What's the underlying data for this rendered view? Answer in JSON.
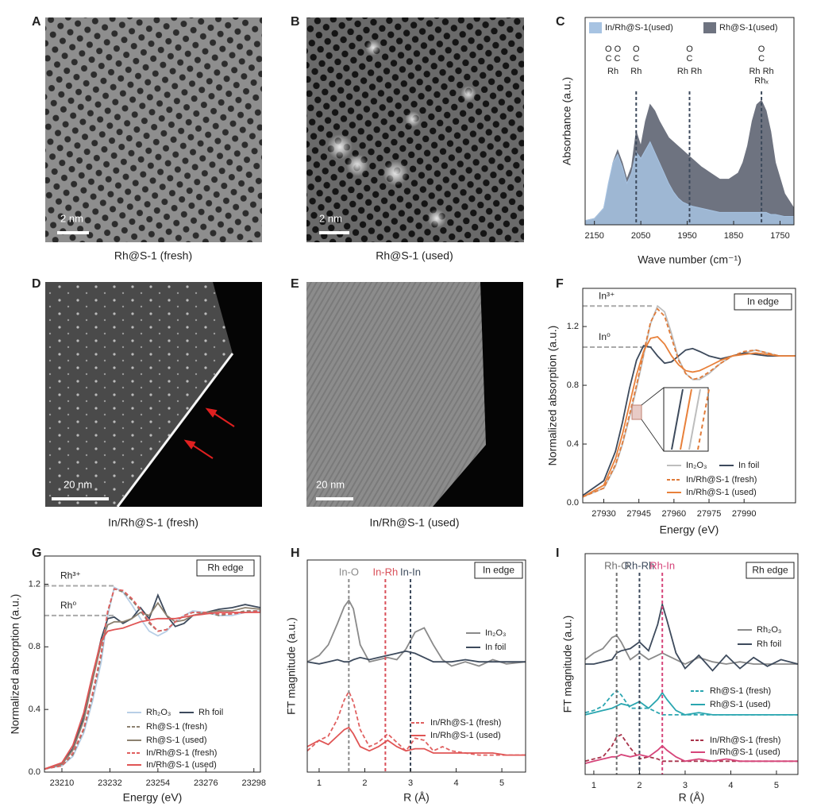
{
  "images": [
    {
      "label": "A",
      "caption": "Rh@S-1 (fresh)",
      "scale": "2 nm"
    },
    {
      "label": "B",
      "caption": "Rh@S-1 (used)",
      "scale": "2 nm"
    },
    {
      "label": "D",
      "caption": "In/Rh@S-1 (fresh)",
      "scale": "20 nm"
    },
    {
      "label": "E",
      "caption": "In/Rh@S-1 (used)",
      "scale": "20 nm"
    }
  ],
  "chart_data": [
    {
      "type": "area",
      "label": "C",
      "xlabel": "Wave number (cm⁻¹)",
      "ylabel": "Absorbance (a.u.)",
      "xlim": [
        2170,
        1720
      ],
      "xticks": [
        2150,
        2050,
        1950,
        1850,
        1750
      ],
      "ylim": [
        0,
        1
      ],
      "x": [
        2170,
        2150,
        2130,
        2120,
        2110,
        2100,
        2090,
        2080,
        2070,
        2060,
        2050,
        2040,
        2030,
        2020,
        2010,
        2000,
        1990,
        1980,
        1970,
        1960,
        1950,
        1940,
        1920,
        1900,
        1880,
        1860,
        1840,
        1830,
        1820,
        1810,
        1800,
        1790,
        1780,
        1770,
        1760,
        1740,
        1720
      ],
      "markers": [
        {
          "value": 2110,
          "lines": [
            "O O",
            "C C",
            "Rh"
          ],
          "line": false
        },
        {
          "value": 2060,
          "lines": [
            "O",
            "C",
            "Rh"
          ],
          "line": true
        },
        {
          "value": 1945,
          "lines": [
            "O",
            "C",
            "Rh Rh"
          ],
          "line": true
        },
        {
          "value": 1790,
          "lines": [
            "O",
            "C",
            "Rh Rh",
            "Rhₓ"
          ],
          "line": true
        }
      ],
      "series": [
        {
          "name": "Rh@S-1(used)",
          "color": "#6e7380",
          "values": [
            0.02,
            0.03,
            0.08,
            0.18,
            0.3,
            0.36,
            0.3,
            0.22,
            0.28,
            0.45,
            0.38,
            0.5,
            0.58,
            0.55,
            0.5,
            0.46,
            0.42,
            0.4,
            0.38,
            0.36,
            0.34,
            0.32,
            0.28,
            0.25,
            0.22,
            0.22,
            0.25,
            0.3,
            0.38,
            0.5,
            0.58,
            0.6,
            0.55,
            0.45,
            0.3,
            0.15,
            0.08
          ]
        },
        {
          "name": "In/Rh@S-1(used)",
          "color": "#a7c3e2",
          "values": [
            0.02,
            0.03,
            0.08,
            0.2,
            0.3,
            0.34,
            0.28,
            0.2,
            0.25,
            0.35,
            0.32,
            0.36,
            0.4,
            0.35,
            0.3,
            0.25,
            0.2,
            0.16,
            0.13,
            0.11,
            0.1,
            0.09,
            0.08,
            0.07,
            0.06,
            0.06,
            0.06,
            0.06,
            0.06,
            0.06,
            0.06,
            0.06,
            0.06,
            0.05,
            0.05,
            0.04,
            0.04
          ]
        }
      ]
    },
    {
      "type": "line",
      "label": "F",
      "tag": "In edge",
      "xlabel": "Energy (eV)",
      "ylabel": "Normalized absorption (a.u.)",
      "xlim": [
        27921,
        28012
      ],
      "xticks": [
        27930,
        27945,
        27960,
        27975,
        27990
      ],
      "ylim": [
        0,
        1.46
      ],
      "yticks": [
        {
          "value": 0,
          "label": "0.0"
        },
        0.4,
        0.8,
        1.2
      ],
      "refs": [
        {
          "label": "In³⁺",
          "value": 1.34
        },
        {
          "label": "In⁰",
          "value": 1.06
        }
      ],
      "x": [
        27921,
        27930,
        27935,
        27938,
        27941,
        27944,
        27947,
        27950,
        27953,
        27956,
        27959,
        27962,
        27965,
        27968,
        27971,
        27975,
        27980,
        27985,
        27990,
        27995,
        28000,
        28005,
        28012
      ],
      "series": [
        {
          "name": "In₂O₃",
          "color": "#bdbdbd",
          "dash": false,
          "values": [
            0.04,
            0.1,
            0.25,
            0.4,
            0.58,
            0.78,
            1.0,
            1.22,
            1.34,
            1.3,
            1.15,
            0.98,
            0.88,
            0.84,
            0.84,
            0.88,
            0.95,
            1.0,
            1.02,
            1.04,
            1.02,
            1.0,
            1.0
          ]
        },
        {
          "name": "In foil",
          "color": "#3d4a5c",
          "dash": false,
          "values": [
            0.05,
            0.15,
            0.35,
            0.55,
            0.78,
            0.97,
            1.07,
            1.06,
            1.0,
            0.95,
            0.96,
            1.0,
            1.04,
            1.05,
            1.03,
            1.0,
            0.98,
            1.0,
            1.02,
            1.01,
            1.0,
            1.0,
            1.0
          ]
        },
        {
          "name": "In/Rh@S-1 (fresh)",
          "color": "#e07b39",
          "dash": true,
          "values": [
            0.04,
            0.1,
            0.26,
            0.41,
            0.6,
            0.8,
            1.02,
            1.23,
            1.32,
            1.27,
            1.12,
            0.97,
            0.88,
            0.84,
            0.85,
            0.89,
            0.95,
            1.0,
            1.03,
            1.04,
            1.02,
            1.0,
            1.0
          ]
        },
        {
          "name": "In/Rh@S-1 (used)",
          "color": "#e8803a",
          "dash": false,
          "values": [
            0.04,
            0.12,
            0.3,
            0.47,
            0.67,
            0.87,
            1.03,
            1.12,
            1.13,
            1.08,
            1.0,
            0.94,
            0.9,
            0.89,
            0.9,
            0.93,
            0.97,
            1.0,
            1.01,
            1.02,
            1.01,
            1.0,
            1.0
          ]
        }
      ]
    },
    {
      "type": "line",
      "label": "G",
      "tag": "Rh edge",
      "xlabel": "Energy (eV)",
      "ylabel": "Normalized absorption (a.u.)",
      "xlim": [
        23202,
        23301
      ],
      "xticks": [
        23210,
        23232,
        23254,
        23276,
        23298
      ],
      "ylim": [
        0,
        1.38
      ],
      "yticks": [
        {
          "value": 0,
          "label": "0.0"
        },
        0.4,
        0.8,
        1.2
      ],
      "refs": [
        {
          "label": "Rh³⁺",
          "value": 1.19
        },
        {
          "label": "Rh⁰",
          "value": 1.0
        }
      ],
      "x": [
        23202,
        23210,
        23215,
        23220,
        23224,
        23228,
        23231,
        23234,
        23238,
        23242,
        23246,
        23250,
        23254,
        23258,
        23262,
        23266,
        23270,
        23276,
        23282,
        23288,
        23294,
        23301
      ],
      "series": [
        {
          "name": "Rh₂O₃",
          "color": "#b8cfe6",
          "dash": false,
          "values": [
            0.02,
            0.04,
            0.1,
            0.25,
            0.45,
            0.7,
            1.0,
            1.18,
            1.15,
            1.07,
            0.98,
            0.9,
            0.87,
            0.9,
            0.96,
            1.0,
            1.03,
            1.02,
            1.0,
            1.0,
            1.02,
            1.03
          ]
        },
        {
          "name": "Rh foil",
          "color": "#3d4a5c",
          "dash": false,
          "values": [
            0.02,
            0.05,
            0.15,
            0.35,
            0.6,
            0.85,
            0.98,
            0.99,
            0.95,
            0.98,
            1.05,
            0.98,
            1.13,
            1.0,
            0.93,
            0.95,
            1.0,
            1.02,
            1.04,
            1.05,
            1.07,
            1.05
          ]
        },
        {
          "name": "Rh@S-1 (fresh)",
          "color": "#8c8170",
          "dash": true,
          "values": [
            0.02,
            0.04,
            0.11,
            0.27,
            0.48,
            0.74,
            1.02,
            1.17,
            1.15,
            1.1,
            1.03,
            0.95,
            0.9,
            0.91,
            0.96,
            1.0,
            1.02,
            1.02,
            1.0,
            1.01,
            1.03,
            1.03
          ]
        },
        {
          "name": "Rh@S-1 (used)",
          "color": "#8c8170",
          "dash": false,
          "values": [
            0.02,
            0.05,
            0.14,
            0.33,
            0.58,
            0.82,
            0.94,
            0.96,
            0.96,
            0.98,
            1.02,
            1.0,
            1.08,
            1.0,
            0.96,
            0.97,
            1.0,
            1.02,
            1.03,
            1.03,
            1.05,
            1.04
          ]
        },
        {
          "name": "In/Rh@S-1 (fresh)",
          "color": "#e06060",
          "dash": true,
          "values": [
            0.02,
            0.04,
            0.12,
            0.28,
            0.5,
            0.76,
            1.03,
            1.17,
            1.16,
            1.11,
            1.04,
            0.96,
            0.9,
            0.91,
            0.96,
            1.0,
            1.02,
            1.02,
            1.01,
            1.01,
            1.02,
            1.03
          ]
        },
        {
          "name": "In/Rh@S-1 (used)",
          "color": "#e05555",
          "dash": false,
          "values": [
            0.02,
            0.06,
            0.17,
            0.38,
            0.62,
            0.84,
            0.9,
            0.91,
            0.92,
            0.94,
            0.96,
            0.97,
            0.98,
            0.98,
            0.98,
            0.99,
            1.0,
            1.01,
            1.02,
            1.02,
            1.02,
            1.02
          ]
        }
      ]
    },
    {
      "type": "line",
      "label": "H",
      "tag": "In edge",
      "xlabel": "R (Å)",
      "ylabel": "FT magnitude (a.u.)",
      "xlim": [
        0.74,
        5.52
      ],
      "xticks": [
        1,
        2,
        3,
        4,
        5
      ],
      "ylim": [
        0,
        1
      ],
      "markers": [
        {
          "label": "In-O",
          "value": 1.65,
          "color": "#8a8a8a",
          "line": true
        },
        {
          "label": "In-Rh",
          "value": 2.45,
          "color": "#d9505a",
          "line": true
        },
        {
          "label": "In-In",
          "value": 3.0,
          "color": "#3d4a5c",
          "line": true
        }
      ],
      "x": [
        0.74,
        1.0,
        1.2,
        1.4,
        1.55,
        1.65,
        1.75,
        1.9,
        2.1,
        2.3,
        2.5,
        2.7,
        2.9,
        3.1,
        3.3,
        3.5,
        3.7,
        3.9,
        4.2,
        4.5,
        4.8,
        5.1,
        5.52
      ],
      "series": [
        {
          "name": "In₂O₃",
          "color": "#8a8a8a",
          "dash": false,
          "values": [
            0.52,
            0.55,
            0.6,
            0.7,
            0.78,
            0.81,
            0.77,
            0.6,
            0.52,
            0.53,
            0.54,
            0.53,
            0.58,
            0.66,
            0.68,
            0.6,
            0.53,
            0.5,
            0.52,
            0.5,
            0.53,
            0.51,
            0.52
          ]
        },
        {
          "name": "In foil",
          "color": "#3d4a5c",
          "dash": false,
          "values": [
            0.52,
            0.51,
            0.52,
            0.53,
            0.52,
            0.52,
            0.53,
            0.54,
            0.53,
            0.54,
            0.55,
            0.56,
            0.57,
            0.56,
            0.54,
            0.52,
            0.52,
            0.52,
            0.53,
            0.52,
            0.52,
            0.52,
            0.52
          ]
        },
        {
          "name": "In/Rh@S-1 (fresh)",
          "color": "#e06060",
          "dash": true,
          "values": [
            0.1,
            0.15,
            0.17,
            0.25,
            0.34,
            0.38,
            0.33,
            0.2,
            0.12,
            0.14,
            0.18,
            0.14,
            0.1,
            0.16,
            0.15,
            0.1,
            0.12,
            0.1,
            0.09,
            0.08,
            0.08,
            0.08,
            0.08
          ]
        },
        {
          "name": "In/Rh@S-1 (used)",
          "color": "#e05555",
          "dash": false,
          "values": [
            0.12,
            0.15,
            0.13,
            0.17,
            0.2,
            0.21,
            0.18,
            0.12,
            0.1,
            0.12,
            0.15,
            0.12,
            0.1,
            0.11,
            0.11,
            0.09,
            0.09,
            0.09,
            0.09,
            0.09,
            0.09,
            0.08,
            0.08
          ]
        }
      ]
    },
    {
      "type": "line",
      "label": "I",
      "tag": "Rh edge",
      "xlabel": "R (Å)",
      "ylabel": "FT magnitude (a.u.)",
      "xlim": [
        0.81,
        5.47
      ],
      "xticks": [
        1,
        2,
        3,
        4,
        5
      ],
      "ylim": [
        0,
        1
      ],
      "markers": [
        {
          "label": "Rh-O",
          "value": 1.5,
          "color": "#6f6f6f",
          "line": true
        },
        {
          "label": "Rh-Rh",
          "value": 2.0,
          "color": "#3d4a5c",
          "line": true
        },
        {
          "label": "Rh-In",
          "value": 2.5,
          "color": "#d6457a",
          "line": true
        }
      ],
      "x": [
        0.81,
        1.0,
        1.2,
        1.4,
        1.5,
        1.6,
        1.8,
        2.0,
        2.2,
        2.4,
        2.5,
        2.6,
        2.8,
        3.0,
        3.3,
        3.6,
        3.9,
        4.2,
        4.5,
        4.8,
        5.1,
        5.47
      ],
      "series": [
        {
          "name": "Rh₂O₃",
          "color": "#8a8a8a",
          "dash": false,
          "values": [
            0.52,
            0.55,
            0.57,
            0.62,
            0.63,
            0.6,
            0.52,
            0.55,
            0.52,
            0.54,
            0.55,
            0.54,
            0.52,
            0.5,
            0.53,
            0.51,
            0.5,
            0.51,
            0.5,
            0.5,
            0.5,
            0.5
          ]
        },
        {
          "name": "Rh foil",
          "color": "#3d4a5c",
          "dash": false,
          "values": [
            0.5,
            0.5,
            0.51,
            0.52,
            0.55,
            0.56,
            0.57,
            0.6,
            0.56,
            0.68,
            0.77,
            0.7,
            0.55,
            0.48,
            0.54,
            0.47,
            0.54,
            0.48,
            0.53,
            0.49,
            0.52,
            0.5
          ]
        },
        {
          "name": "Rh@S-1 (fresh)",
          "color": "#2aa6b0",
          "dash": true,
          "values": [
            0.28,
            0.29,
            0.31,
            0.36,
            0.38,
            0.36,
            0.3,
            0.3,
            0.3,
            0.28,
            0.27,
            0.27,
            0.27,
            0.27,
            0.27,
            0.27,
            0.27,
            0.27,
            0.27,
            0.27,
            0.27,
            0.27
          ]
        },
        {
          "name": "Rh@S-1 (used)",
          "color": "#2aa6b0",
          "dash": false,
          "values": [
            0.27,
            0.28,
            0.29,
            0.3,
            0.31,
            0.32,
            0.31,
            0.33,
            0.3,
            0.34,
            0.37,
            0.34,
            0.29,
            0.27,
            0.28,
            0.27,
            0.27,
            0.27,
            0.27,
            0.27,
            0.27,
            0.27
          ]
        },
        {
          "name": "In/Rh@S-1 (fresh)",
          "color": "#a8324a",
          "dash": true,
          "values": [
            0.06,
            0.07,
            0.08,
            0.13,
            0.17,
            0.18,
            0.12,
            0.07,
            0.08,
            0.07,
            0.06,
            0.06,
            0.06,
            0.06,
            0.06,
            0.06,
            0.06,
            0.06,
            0.06,
            0.06,
            0.06,
            0.06
          ]
        },
        {
          "name": "In/Rh@S-1 (used)",
          "color": "#d6457a",
          "dash": false,
          "values": [
            0.05,
            0.06,
            0.07,
            0.08,
            0.08,
            0.09,
            0.08,
            0.09,
            0.08,
            0.11,
            0.13,
            0.11,
            0.08,
            0.06,
            0.07,
            0.06,
            0.07,
            0.06,
            0.06,
            0.06,
            0.06,
            0.06
          ]
        }
      ]
    }
  ]
}
